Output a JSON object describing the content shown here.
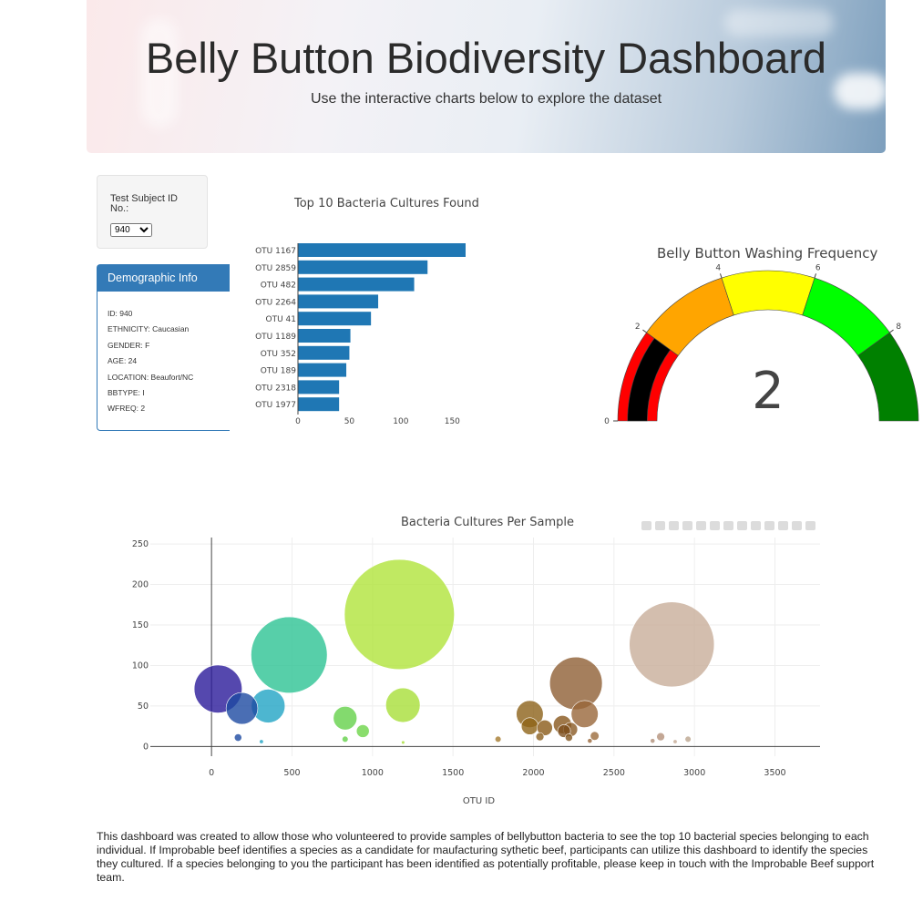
{
  "header": {
    "title": "Belly Button Biodiversity Dashboard",
    "subtitle": "Use the interactive charts below to explore the dataset"
  },
  "selector": {
    "label": "Test Subject ID No.:",
    "value": "940",
    "options": [
      "940"
    ]
  },
  "demographics": {
    "title": "Demographic Info",
    "rows": [
      "ID: 940",
      "ETHNICITY: Caucasian",
      "GENDER: F",
      "AGE: 24",
      "LOCATION: Beaufort/NC",
      "BBTYPE: I",
      "WFREQ: 2"
    ]
  },
  "footer": {
    "text": "This dashboard was created to allow those who volunteered to provide samples of bellybutton bacteria to see the top 10 bacterial species belonging to each individual. If Improbable beef identifies a species as a candidate for maufacturing sythetic beef, participants can utilize this dashboard to identify the species they cultured. If a species belonging to you the participant has been identified as potentially profitable, please keep in touch with the Improbable Beef support team."
  },
  "colors": {
    "primary": "#337ab7",
    "bar": "#1f77b4"
  },
  "chart_data": [
    {
      "type": "bar",
      "orientation": "horizontal",
      "title": "Top 10 Bacteria Cultures Found",
      "categories": [
        "OTU 1167",
        "OTU 2859",
        "OTU 482",
        "OTU 2264",
        "OTU 41",
        "OTU 1189",
        "OTU 352",
        "OTU 189",
        "OTU 2318",
        "OTU 1977"
      ],
      "values": [
        163,
        126,
        113,
        78,
        71,
        51,
        50,
        47,
        40,
        40
      ],
      "xlim": [
        0,
        163
      ],
      "xticks": [
        0,
        50,
        100,
        150
      ],
      "color": "#1f77b4"
    },
    {
      "type": "gauge",
      "title": "Belly Button Washing Frequency",
      "value": 2,
      "range": [
        0,
        10
      ],
      "tick_labels": [
        "0",
        "2",
        "4",
        "6",
        "8"
      ],
      "steps": [
        {
          "range": [
            0,
            2
          ],
          "color": "#ff0000"
        },
        {
          "range": [
            2,
            4
          ],
          "color": "#ffa500"
        },
        {
          "range": [
            4,
            6
          ],
          "color": "#ffff00"
        },
        {
          "range": [
            6,
            8
          ],
          "color": "#00ff00"
        },
        {
          "range": [
            8,
            10
          ],
          "color": "#008000"
        }
      ],
      "bar_color": "#000000"
    },
    {
      "type": "scatter",
      "subtype": "bubble",
      "title": "Bacteria Cultures Per Sample",
      "xlabel": "OTU ID",
      "xlim": [
        -380,
        3780
      ],
      "ylim": [
        -12,
        258
      ],
      "xticks": [
        0,
        500,
        1000,
        1500,
        2000,
        2500,
        3000,
        3500
      ],
      "yticks": [
        0,
        50,
        100,
        150,
        200,
        250
      ],
      "points": [
        {
          "x": 41,
          "y": 71,
          "c": "#2a1a9a"
        },
        {
          "x": 189,
          "y": 47,
          "c": "#1d4aa1"
        },
        {
          "x": 352,
          "y": 50,
          "c": "#21a4c4"
        },
        {
          "x": 482,
          "y": 113,
          "c": "#2dc393"
        },
        {
          "x": 1167,
          "y": 163,
          "c": "#b0e33b"
        },
        {
          "x": 1189,
          "y": 51,
          "c": "#a8de38"
        },
        {
          "x": 2264,
          "y": 78,
          "c": "#8f5f34"
        },
        {
          "x": 2859,
          "y": 126,
          "c": "#c8ae9a"
        },
        {
          "x": 2318,
          "y": 40,
          "c": "#98663a"
        },
        {
          "x": 1977,
          "y": 40,
          "c": "#8c6119"
        },
        {
          "x": 830,
          "y": 35,
          "c": "#64d14a"
        },
        {
          "x": 940,
          "y": 19,
          "c": "#6dd549"
        },
        {
          "x": 1977,
          "y": 25,
          "c": "#8e6418"
        },
        {
          "x": 2070,
          "y": 23,
          "c": "#8a5a18"
        },
        {
          "x": 2180,
          "y": 27,
          "c": "#87561c"
        },
        {
          "x": 2230,
          "y": 21,
          "c": "#8a5a24"
        },
        {
          "x": 2190,
          "y": 19,
          "c": "#7d4f1e"
        },
        {
          "x": 2040,
          "y": 12,
          "c": "#8c6020"
        },
        {
          "x": 2220,
          "y": 11,
          "c": "#82551e"
        },
        {
          "x": 2380,
          "y": 13,
          "c": "#9b6c3c"
        },
        {
          "x": 2790,
          "y": 12,
          "c": "#b4917a"
        },
        {
          "x": 2960,
          "y": 9,
          "c": "#bca58e"
        },
        {
          "x": 1780,
          "y": 9,
          "c": "#a57b2e"
        },
        {
          "x": 165,
          "y": 11,
          "c": "#1d4aa1"
        },
        {
          "x": 310,
          "y": 6,
          "c": "#21a4c4"
        },
        {
          "x": 830,
          "y": 9,
          "c": "#64d14a"
        },
        {
          "x": 2350,
          "y": 7,
          "c": "#98663a"
        },
        {
          "x": 2740,
          "y": 7,
          "c": "#b08e78"
        },
        {
          "x": 2880,
          "y": 6,
          "c": "#c4a994"
        },
        {
          "x": 1190,
          "y": 5,
          "c": "#a8de38"
        }
      ]
    }
  ]
}
